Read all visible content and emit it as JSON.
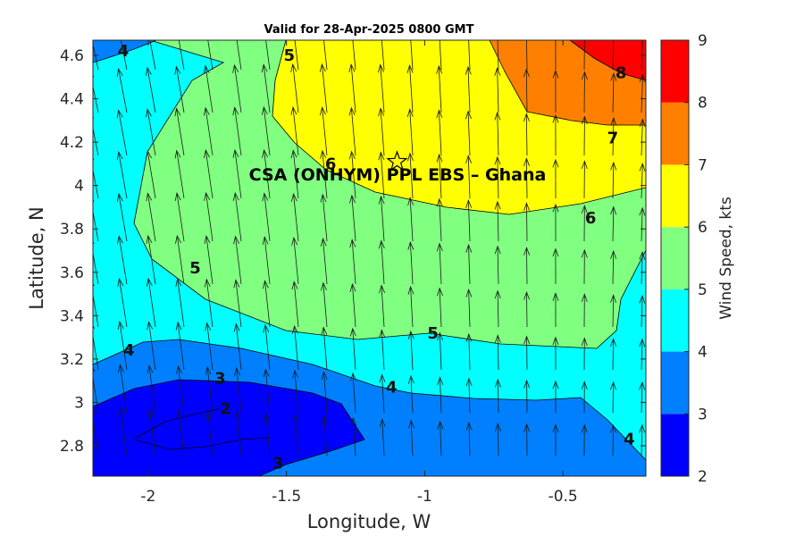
{
  "chart_data": {
    "type": "contour",
    "title": "Valid for 28-Apr-2025 0800 GMT",
    "xlabel": "Longitude, W",
    "ylabel": "Latitude, N",
    "xlim": [
      -2.2,
      -0.2
    ],
    "ylim": [
      2.66,
      4.67
    ],
    "xticks": [
      -2,
      -1.5,
      -1,
      -0.5
    ],
    "xtick_labels": [
      "-2",
      "-1.5",
      "-1",
      "-0.5"
    ],
    "yticks": [
      2.8,
      3,
      3.2,
      3.4,
      3.6,
      3.8,
      4,
      4.2,
      4.4,
      4.6
    ],
    "ytick_labels": [
      "2.8",
      "3",
      "3.2",
      "3.4",
      "3.6",
      "3.8",
      "4",
      "4.2",
      "4.4",
      "4.6"
    ],
    "colorbar": {
      "label": "Wind Speed, kts",
      "levels": [
        2,
        3,
        4,
        5,
        6,
        7,
        8,
        9
      ],
      "tick_labels": [
        "2",
        "3",
        "4",
        "5",
        "6",
        "7",
        "8",
        "9"
      ],
      "colors": [
        "#0000ff",
        "#0080ff",
        "#00ffff",
        "#80ff80",
        "#ffff00",
        "#ff8000",
        "#ff0000"
      ]
    },
    "contour_labels": [
      {
        "text": "4",
        "lon": -2.09,
        "lat": 4.62
      },
      {
        "text": "5",
        "lon": -1.49,
        "lat": 4.6
      },
      {
        "text": "8",
        "lon": -0.29,
        "lat": 4.52
      },
      {
        "text": "7",
        "lon": -0.32,
        "lat": 4.22
      },
      {
        "text": "6",
        "lon": -1.34,
        "lat": 4.1
      },
      {
        "text": "6",
        "lon": -0.4,
        "lat": 3.85
      },
      {
        "text": "5",
        "lon": -1.83,
        "lat": 3.62
      },
      {
        "text": "5",
        "lon": -0.97,
        "lat": 3.32
      },
      {
        "text": "4",
        "lon": -2.07,
        "lat": 3.24
      },
      {
        "text": "3",
        "lon": -1.74,
        "lat": 3.11
      },
      {
        "text": "4",
        "lon": -1.12,
        "lat": 3.07
      },
      {
        "text": "2",
        "lon": -1.72,
        "lat": 2.97
      },
      {
        "text": "3",
        "lon": -1.53,
        "lat": 2.72
      },
      {
        "text": "4",
        "lon": -0.26,
        "lat": 2.83
      }
    ],
    "site": {
      "name": "CSA (ONHYM) PPL EBS  – Ghana",
      "lon": -1.1,
      "lat": 4.11,
      "marker": "star"
    },
    "wind_direction": "from the south (arrows point northward, slight northwestward tilt in the west)"
  }
}
